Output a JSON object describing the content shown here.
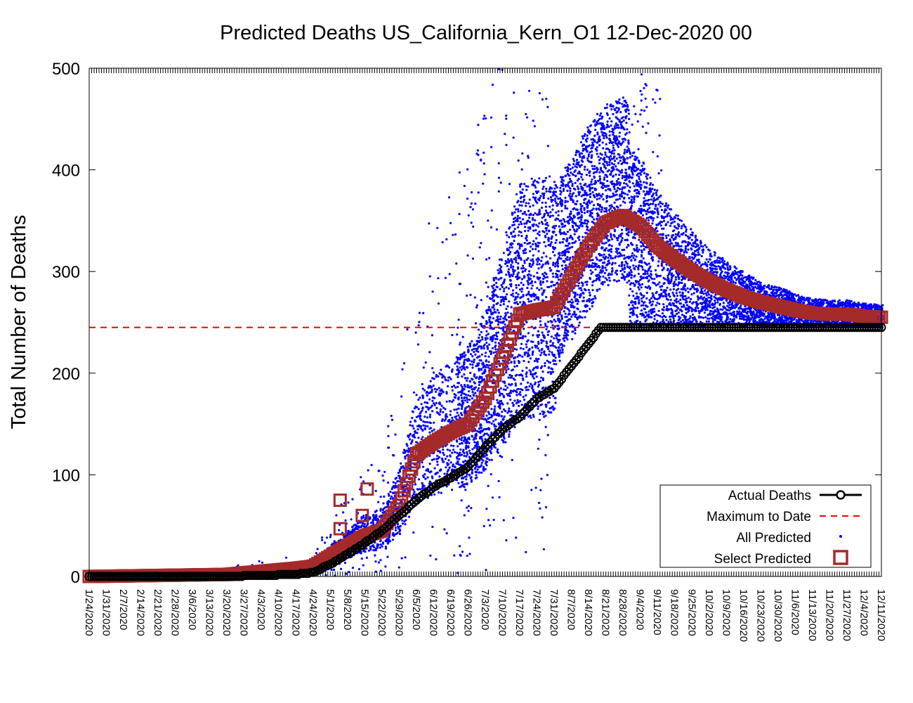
{
  "chart_data": {
    "type": "scatter",
    "title": "Predicted Deaths US_California_Kern_O1 12-Dec-2020 00",
    "ylabel": "Total Number of Deaths",
    "xlabel": "",
    "ylim": [
      0,
      500
    ],
    "yticks": [
      0,
      100,
      200,
      300,
      400,
      500
    ],
    "x_range": [
      "1/24/2020",
      "12/11/2020"
    ],
    "x_tick_labels": [
      "1/24/2020",
      "1/31/2020",
      "2/7/2020",
      "2/14/2020",
      "2/21/2020",
      "2/28/2020",
      "3/6/2020",
      "3/13/2020",
      "3/20/2020",
      "3/27/2020",
      "4/3/2020",
      "4/10/2020",
      "4/17/2020",
      "4/24/2020",
      "5/1/2020",
      "5/8/2020",
      "5/15/2020",
      "5/22/2020",
      "5/29/2020",
      "6/5/2020",
      "6/12/2020",
      "6/19/2020",
      "6/26/2020",
      "7/3/2020",
      "7/10/2020",
      "7/17/2020",
      "7/24/2020",
      "7/31/2020",
      "8/7/2020",
      "8/14/2020",
      "8/21/2020",
      "8/28/2020",
      "9/4/2020",
      "9/11/2020",
      "9/18/2020",
      "9/25/2020",
      "10/2/2020",
      "10/9/2020",
      "10/16/2020",
      "10/23/2020",
      "10/30/2020",
      "11/6/2020",
      "11/13/2020",
      "11/20/2020",
      "11/27/2020",
      "12/4/2020",
      "12/11/2020"
    ],
    "grid": false,
    "legend_position": "bottom-right",
    "max_to_date": 245,
    "series": [
      {
        "name": "Actual Deaths",
        "style": "line-circles",
        "color": "#000000",
        "points": [
          [
            "1/24/2020",
            0
          ],
          [
            "3/20/2020",
            0
          ],
          [
            "4/3/2020",
            1
          ],
          [
            "4/17/2020",
            2
          ],
          [
            "4/24/2020",
            4
          ],
          [
            "5/1/2020",
            12
          ],
          [
            "5/8/2020",
            22
          ],
          [
            "5/15/2020",
            33
          ],
          [
            "5/22/2020",
            45
          ],
          [
            "5/29/2020",
            60
          ],
          [
            "6/5/2020",
            75
          ],
          [
            "6/12/2020",
            88
          ],
          [
            "6/19/2020",
            97
          ],
          [
            "6/26/2020",
            108
          ],
          [
            "7/3/2020",
            127
          ],
          [
            "7/10/2020",
            145
          ],
          [
            "7/17/2020",
            157
          ],
          [
            "7/24/2020",
            175
          ],
          [
            "7/31/2020",
            185
          ],
          [
            "8/7/2020",
            207
          ],
          [
            "8/14/2020",
            229
          ],
          [
            "8/19/2020",
            245
          ],
          [
            "12/11/2020",
            245
          ]
        ]
      },
      {
        "name": "Maximum to Date",
        "style": "dashed",
        "color": "#ff0000",
        "points": [
          [
            "1/24/2020",
            245
          ],
          [
            "12/11/2020",
            245
          ]
        ]
      },
      {
        "name": "All Predicted",
        "style": "dots",
        "color": "#0000ff"
      },
      {
        "name": "Select Predicted",
        "style": "squares",
        "color": "#a52a2a",
        "points": [
          [
            "1/24/2020",
            0
          ],
          [
            "3/20/2020",
            2
          ],
          [
            "4/3/2020",
            5
          ],
          [
            "4/17/2020",
            8
          ],
          [
            "4/24/2020",
            10
          ],
          [
            "5/1/2020",
            20
          ],
          [
            "5/8/2020",
            30
          ],
          [
            "5/15/2020",
            40
          ],
          [
            "5/22/2020",
            45
          ],
          [
            "5/29/2020",
            70
          ],
          [
            "6/5/2020",
            120
          ],
          [
            "6/12/2020",
            132
          ],
          [
            "6/19/2020",
            142
          ],
          [
            "6/26/2020",
            150
          ],
          [
            "7/3/2020",
            175
          ],
          [
            "7/10/2020",
            215
          ],
          [
            "7/17/2020",
            258
          ],
          [
            "7/24/2020",
            262
          ],
          [
            "7/31/2020",
            265
          ],
          [
            "8/7/2020",
            295
          ],
          [
            "8/14/2020",
            325
          ],
          [
            "8/21/2020",
            348
          ],
          [
            "8/28/2020",
            355
          ],
          [
            "9/4/2020",
            345
          ],
          [
            "9/11/2020",
            325
          ],
          [
            "9/18/2020",
            312
          ],
          [
            "9/25/2020",
            300
          ],
          [
            "10/2/2020",
            290
          ],
          [
            "10/9/2020",
            282
          ],
          [
            "10/16/2020",
            275
          ],
          [
            "10/23/2020",
            270
          ],
          [
            "10/30/2020",
            266
          ],
          [
            "11/6/2020",
            262
          ],
          [
            "11/13/2020",
            259
          ],
          [
            "11/20/2020",
            258
          ],
          [
            "11/27/2020",
            258
          ],
          [
            "12/4/2020",
            256
          ],
          [
            "12/11/2020",
            255
          ]
        ],
        "outliers": [
          [
            "5/5/2020",
            75
          ],
          [
            "5/5/2020",
            47
          ],
          [
            "5/14/2020",
            60
          ],
          [
            "5/16/2020",
            86
          ]
        ]
      }
    ]
  }
}
